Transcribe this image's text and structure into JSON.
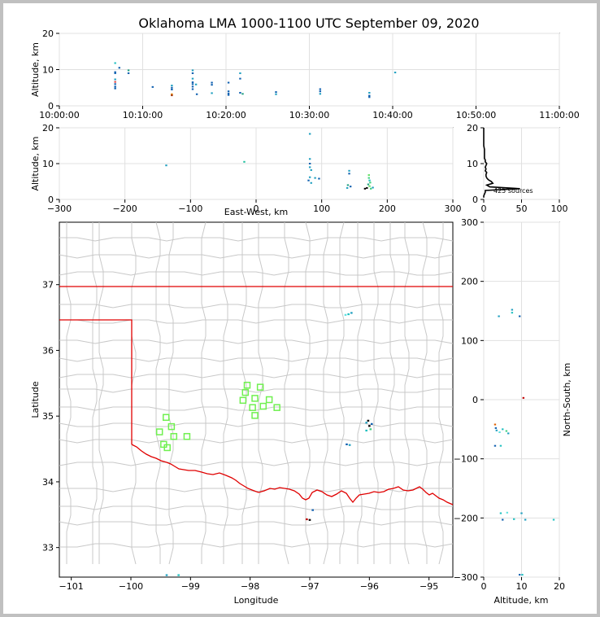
{
  "title": "Oklahoma LMA 1000-1100 UTC September 09, 2020",
  "chart_data": [
    {
      "id": "time_altitude",
      "type": "scatter",
      "ylabel": "Altitude, km",
      "ylim": [
        0,
        20
      ],
      "yticks": [
        "0",
        "10",
        "20"
      ],
      "xticks": [
        "10:00:00",
        "10:10:00",
        "10:20:00",
        "10:30:00",
        "10:40:00",
        "10:50:00",
        "11:00:00"
      ],
      "xlim_minutes": [
        0,
        60
      ],
      "points": [
        {
          "x": 6.7,
          "y": 11.8,
          "c": "#20c0c0"
        },
        {
          "x": 6.7,
          "y": 9.3,
          "c": "#1060b0"
        },
        {
          "x": 6.7,
          "y": 9.0,
          "c": "#1060b0"
        },
        {
          "x": 6.7,
          "y": 7.3,
          "c": "#20a0c0"
        },
        {
          "x": 6.7,
          "y": 6.6,
          "c": "#e04040"
        },
        {
          "x": 6.7,
          "y": 6.0,
          "c": "#1060b0"
        },
        {
          "x": 6.7,
          "y": 5.3,
          "c": "#1060b0"
        },
        {
          "x": 6.7,
          "y": 4.8,
          "c": "#1060b0"
        },
        {
          "x": 7.2,
          "y": 10.5,
          "c": "#1060b0"
        },
        {
          "x": 8.3,
          "y": 9.8,
          "c": "#20a080"
        },
        {
          "x": 8.3,
          "y": 9.0,
          "c": "#1060b0"
        },
        {
          "x": 11.2,
          "y": 5.2,
          "c": "#1060b0"
        },
        {
          "x": 13.5,
          "y": 5.6,
          "c": "#20a0c0"
        },
        {
          "x": 13.5,
          "y": 5.0,
          "c": "#1060b0"
        },
        {
          "x": 13.5,
          "y": 4.5,
          "c": "#1060b0"
        },
        {
          "x": 13.5,
          "y": 3.2,
          "c": "#e08000"
        },
        {
          "x": 13.5,
          "y": 2.9,
          "c": "#a03000"
        },
        {
          "x": 16.0,
          "y": 9.8,
          "c": "#20a0c0"
        },
        {
          "x": 16.0,
          "y": 9.0,
          "c": "#1060b0"
        },
        {
          "x": 16.0,
          "y": 7.5,
          "c": "#20a0c0"
        },
        {
          "x": 16.0,
          "y": 6.5,
          "c": "#1060b0"
        },
        {
          "x": 16.0,
          "y": 6.0,
          "c": "#1060b0"
        },
        {
          "x": 16.0,
          "y": 5.3,
          "c": "#1060b0"
        },
        {
          "x": 16.0,
          "y": 4.6,
          "c": "#1060b0"
        },
        {
          "x": 16.4,
          "y": 5.9,
          "c": "#20a0c0"
        },
        {
          "x": 16.5,
          "y": 3.2,
          "c": "#1060b0"
        },
        {
          "x": 18.3,
          "y": 6.4,
          "c": "#1060b0"
        },
        {
          "x": 18.3,
          "y": 5.8,
          "c": "#1060b0"
        },
        {
          "x": 18.3,
          "y": 3.5,
          "c": "#20a0c0"
        },
        {
          "x": 20.3,
          "y": 6.4,
          "c": "#1060b0"
        },
        {
          "x": 20.3,
          "y": 4.0,
          "c": "#1060b0"
        },
        {
          "x": 20.3,
          "y": 3.4,
          "c": "#1060b0"
        },
        {
          "x": 20.3,
          "y": 3.0,
          "c": "#1060b0"
        },
        {
          "x": 21.7,
          "y": 9.0,
          "c": "#20a0c0"
        },
        {
          "x": 21.7,
          "y": 7.5,
          "c": "#1060b0"
        },
        {
          "x": 21.7,
          "y": 3.6,
          "c": "#1060b0"
        },
        {
          "x": 22.0,
          "y": 3.3,
          "c": "#20a080"
        },
        {
          "x": 26.0,
          "y": 3.8,
          "c": "#1060b0"
        },
        {
          "x": 26.0,
          "y": 3.2,
          "c": "#20a0c0"
        },
        {
          "x": 31.3,
          "y": 4.6,
          "c": "#1060b0"
        },
        {
          "x": 31.3,
          "y": 4.0,
          "c": "#1060b0"
        },
        {
          "x": 31.3,
          "y": 3.3,
          "c": "#20a0c0"
        },
        {
          "x": 37.2,
          "y": 3.6,
          "c": "#20a0c0"
        },
        {
          "x": 37.2,
          "y": 2.8,
          "c": "#1060b0"
        },
        {
          "x": 37.2,
          "y": 2.4,
          "c": "#1060b0"
        },
        {
          "x": 40.3,
          "y": 9.2,
          "c": "#20a0c0"
        }
      ]
    },
    {
      "id": "ew_altitude",
      "type": "scatter",
      "xlabel": "East-West, km",
      "ylabel": "Altitude, km",
      "xlim": [
        -300,
        300
      ],
      "ylim": [
        0,
        20
      ],
      "xticks": [
        "−300",
        "−200",
        "−100",
        "0",
        "100",
        "200",
        "300"
      ],
      "yticks": [
        "0",
        "10",
        "20"
      ],
      "points": [
        {
          "x": -137,
          "y": 9.5,
          "c": "#20a0c0"
        },
        {
          "x": -18,
          "y": 10.5,
          "c": "#20c0a0"
        },
        {
          "x": 82,
          "y": 18.3,
          "c": "#20a0c0"
        },
        {
          "x": 82,
          "y": 11.3,
          "c": "#20a0c0"
        },
        {
          "x": 82,
          "y": 10.0,
          "c": "#1060b0"
        },
        {
          "x": 82,
          "y": 9.0,
          "c": "#20a0c0"
        },
        {
          "x": 84,
          "y": 8.2,
          "c": "#20a0c0"
        },
        {
          "x": 82,
          "y": 6.2,
          "c": "#20a0c0"
        },
        {
          "x": 80,
          "y": 5.3,
          "c": "#1060b0"
        },
        {
          "x": 84,
          "y": 4.6,
          "c": "#20a0c0"
        },
        {
          "x": 90,
          "y": 6.0,
          "c": "#20a0c0"
        },
        {
          "x": 96,
          "y": 5.8,
          "c": "#1060b0"
        },
        {
          "x": 142,
          "y": 8.0,
          "c": "#20a0c0"
        },
        {
          "x": 142,
          "y": 7.2,
          "c": "#1060b0"
        },
        {
          "x": 140,
          "y": 4.0,
          "c": "#20a080"
        },
        {
          "x": 139,
          "y": 3.2,
          "c": "#20a0c0"
        },
        {
          "x": 144,
          "y": 3.6,
          "c": "#1060b0"
        },
        {
          "x": 172,
          "y": 6.8,
          "c": "#60e060"
        },
        {
          "x": 172,
          "y": 6.0,
          "c": "#40d080"
        },
        {
          "x": 173,
          "y": 5.3,
          "c": "#20c0c0"
        },
        {
          "x": 174,
          "y": 4.7,
          "c": "#40d080"
        },
        {
          "x": 171,
          "y": 4.2,
          "c": "#20a080"
        },
        {
          "x": 173,
          "y": 3.7,
          "c": "#60e060"
        },
        {
          "x": 169,
          "y": 3.2,
          "c": "#000000"
        },
        {
          "x": 175,
          "y": 3.0,
          "c": "#40d080"
        },
        {
          "x": 178,
          "y": 3.3,
          "c": "#20a0c0"
        },
        {
          "x": 166,
          "y": 3.0,
          "c": "#000000"
        }
      ]
    },
    {
      "id": "altitude_histogram",
      "type": "bar",
      "annotation": "425 sources",
      "xlim": [
        0,
        100
      ],
      "ylim": [
        0,
        20
      ],
      "xticks": [
        "0",
        "50",
        "100"
      ],
      "yticks": [
        "0",
        "10",
        "20"
      ],
      "bins": [
        [
          0.5,
          0
        ],
        [
          1.0,
          0
        ],
        [
          1.5,
          1
        ],
        [
          2.0,
          2
        ],
        [
          2.5,
          2
        ],
        [
          3.0,
          48
        ],
        [
          3.5,
          8
        ],
        [
          4.0,
          4
        ],
        [
          4.5,
          12
        ],
        [
          5.0,
          10
        ],
        [
          5.5,
          6
        ],
        [
          6.0,
          4
        ],
        [
          6.5,
          3
        ],
        [
          7.0,
          3
        ],
        [
          7.5,
          4
        ],
        [
          8.0,
          2
        ],
        [
          8.5,
          3
        ],
        [
          9.0,
          2
        ],
        [
          9.5,
          3
        ],
        [
          10.0,
          4
        ],
        [
          10.5,
          2
        ],
        [
          11.0,
          2
        ],
        [
          11.5,
          1
        ],
        [
          12.0,
          1
        ],
        [
          12.5,
          1
        ],
        [
          13.0,
          1
        ],
        [
          14.0,
          1
        ],
        [
          15.0,
          0
        ],
        [
          18.0,
          0
        ],
        [
          20.0,
          0
        ]
      ]
    },
    {
      "id": "plan_view",
      "type": "scatter",
      "xlabel": "Longitude",
      "ylabel": "Latitude",
      "xlim": [
        -101.2,
        -94.6
      ],
      "ylim": [
        32.55,
        37.95
      ],
      "xticks": [
        "−101",
        "−100",
        "−99",
        "−98",
        "−97",
        "−96",
        "−95"
      ],
      "yticks": [
        "33",
        "34",
        "35",
        "36",
        "37"
      ],
      "stations": [
        {
          "x": -98.05,
          "y": 35.47
        },
        {
          "x": -97.83,
          "y": 35.44
        },
        {
          "x": -98.08,
          "y": 35.36
        },
        {
          "x": -97.92,
          "y": 35.27
        },
        {
          "x": -98.12,
          "y": 35.24
        },
        {
          "x": -97.68,
          "y": 35.25
        },
        {
          "x": -97.78,
          "y": 35.15
        },
        {
          "x": -97.96,
          "y": 35.13
        },
        {
          "x": -97.55,
          "y": 35.13
        },
        {
          "x": -97.92,
          "y": 35.01
        },
        {
          "x": -99.41,
          "y": 34.98
        },
        {
          "x": -99.32,
          "y": 34.84
        },
        {
          "x": -99.52,
          "y": 34.76
        },
        {
          "x": -99.28,
          "y": 34.69
        },
        {
          "x": -99.06,
          "y": 34.69
        },
        {
          "x": -99.45,
          "y": 34.57
        },
        {
          "x": -99.39,
          "y": 34.52
        }
      ],
      "sources": [
        {
          "x": -96.35,
          "y": 36.55,
          "c": "#20c0c0"
        },
        {
          "x": -96.3,
          "y": 36.57,
          "c": "#20a0c0"
        },
        {
          "x": -96.4,
          "y": 36.54,
          "c": "#60e0e0"
        },
        {
          "x": -96.05,
          "y": 34.9,
          "c": "#20a0c0"
        },
        {
          "x": -96.0,
          "y": 34.85,
          "c": "#000000"
        },
        {
          "x": -95.98,
          "y": 34.8,
          "c": "#40d080"
        },
        {
          "x": -96.05,
          "y": 34.78,
          "c": "#20c0c0"
        },
        {
          "x": -95.96,
          "y": 34.88,
          "c": "#1060b0"
        },
        {
          "x": -96.02,
          "y": 34.93,
          "c": "#000000"
        },
        {
          "x": -96.38,
          "y": 34.57,
          "c": "#1060b0"
        },
        {
          "x": -96.33,
          "y": 34.56,
          "c": "#20a0c0"
        },
        {
          "x": -97.05,
          "y": 33.43,
          "c": "#c00000"
        },
        {
          "x": -96.95,
          "y": 33.57,
          "c": "#1060b0"
        },
        {
          "x": -97.0,
          "y": 33.42,
          "c": "#000000"
        },
        {
          "x": -99.4,
          "y": 32.58,
          "c": "#20a0c0"
        },
        {
          "x": -99.2,
          "y": 32.58,
          "c": "#20c0c0"
        }
      ]
    },
    {
      "id": "altitude_ns",
      "type": "scatter",
      "xlabel": "Altitude, km",
      "ylabel": "North-South, km",
      "xlim": [
        0,
        20
      ],
      "ylim": [
        -300,
        300
      ],
      "xticks": [
        "0",
        "10",
        "20"
      ],
      "yticks": [
        "−300",
        "−200",
        "−100",
        "0",
        "100",
        "200",
        "300"
      ],
      "points": [
        {
          "x": 7.5,
          "y": 152,
          "c": "#20a0c0"
        },
        {
          "x": 7.5,
          "y": 147,
          "c": "#20c0c0"
        },
        {
          "x": 4.0,
          "y": 141,
          "c": "#20a0c0"
        },
        {
          "x": 9.5,
          "y": 141,
          "c": "#1060b0"
        },
        {
          "x": 10.5,
          "y": 3,
          "c": "#c00000"
        },
        {
          "x": 3.0,
          "y": -42,
          "c": "#e06000"
        },
        {
          "x": 3.2,
          "y": -48,
          "c": "#1060b0"
        },
        {
          "x": 3.4,
          "y": -52,
          "c": "#20a0c0"
        },
        {
          "x": 4.2,
          "y": -55,
          "c": "#60e0e0"
        },
        {
          "x": 5.0,
          "y": -50,
          "c": "#20c0c0"
        },
        {
          "x": 6.0,
          "y": -53,
          "c": "#40d080"
        },
        {
          "x": 6.5,
          "y": -57,
          "c": "#20a0c0"
        },
        {
          "x": 3.0,
          "y": -78,
          "c": "#1060b0"
        },
        {
          "x": 4.5,
          "y": -78,
          "c": "#20c0c0"
        },
        {
          "x": 4.5,
          "y": -192,
          "c": "#20c0c0"
        },
        {
          "x": 6.2,
          "y": -191,
          "c": "#60e0e0"
        },
        {
          "x": 10.0,
          "y": -192,
          "c": "#20a0c0"
        },
        {
          "x": 5.0,
          "y": -203,
          "c": "#1060b0"
        },
        {
          "x": 8.0,
          "y": -202,
          "c": "#20c0c0"
        },
        {
          "x": 11.0,
          "y": -203,
          "c": "#20a0c0"
        },
        {
          "x": 18.5,
          "y": -203,
          "c": "#20c0c0"
        },
        {
          "x": 9.5,
          "y": -296,
          "c": "#1060b0"
        },
        {
          "x": 10.2,
          "y": -296,
          "c": "#20c0c0"
        }
      ]
    }
  ]
}
